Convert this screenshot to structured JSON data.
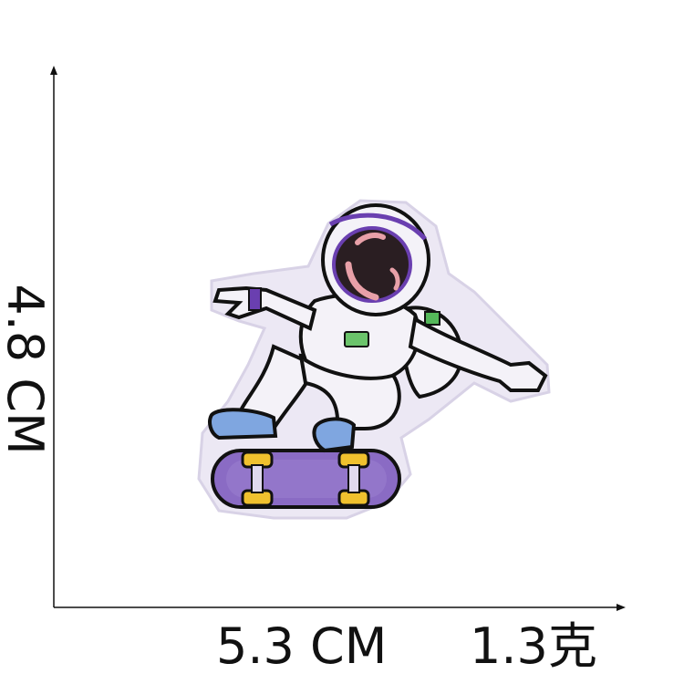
{
  "dimensions": {
    "height_label": "4.8 CM",
    "width_label": "5.3 CM",
    "weight_label": "1.3克"
  },
  "product": {
    "icon": "astronaut-skateboard-patch",
    "colors": {
      "outline": "#111111",
      "suit": "#f4f2f8",
      "board": "#8a6bc4",
      "wheels": "#f0c12e",
      "shoes": "#7fa6e0",
      "visor": "#2a1e22",
      "accent": "#6a3fb0"
    }
  }
}
